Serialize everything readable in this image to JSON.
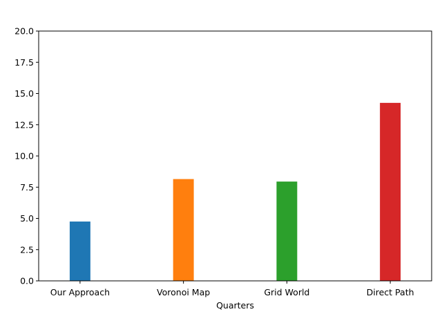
{
  "chart_data": {
    "type": "bar",
    "title": "",
    "xlabel": "Quarters",
    "ylabel": "",
    "categories": [
      "Our Approach",
      "Voronoi Map",
      "Grid World",
      "Direct Path"
    ],
    "values": [
      4.75,
      8.15,
      7.95,
      14.25
    ],
    "colors": [
      "#1f77b4",
      "#ff7f0e",
      "#2ca02c",
      "#d62728"
    ],
    "ylim": [
      0,
      20
    ],
    "yticks": [
      0.0,
      2.5,
      5.0,
      7.5,
      10.0,
      12.5,
      15.0,
      17.5,
      20.0
    ],
    "ytick_labels": [
      "0.0",
      "2.5",
      "5.0",
      "7.5",
      "10.0",
      "12.5",
      "15.0",
      "17.5",
      "20.0"
    ],
    "grid": false,
    "legend": "none"
  }
}
